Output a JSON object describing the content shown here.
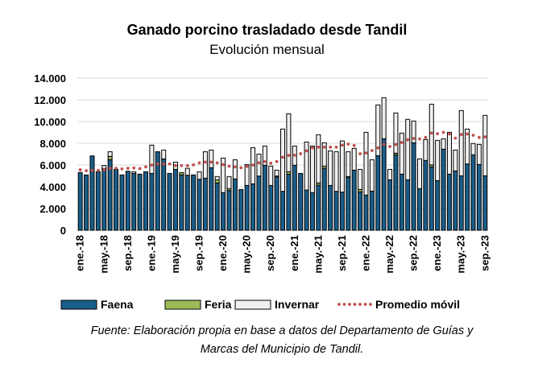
{
  "chart_data": {
    "type": "bar",
    "stacked": true,
    "title": "Ganado porcino trasladado desde Tandil",
    "subtitle": "Evolución mensual",
    "ylim": [
      0,
      14000
    ],
    "yticks": [
      "0",
      "2.000",
      "4.000",
      "6.000",
      "8.000",
      "10.000",
      "12.000",
      "14.000"
    ],
    "ytick_values": [
      0,
      2000,
      4000,
      6000,
      8000,
      10000,
      12000,
      14000
    ],
    "grid": true,
    "legend_placement": "bottom",
    "xtick_labels": [
      "ene.-18",
      "may.-18",
      "sep.-18",
      "ene.-19",
      "may.-19",
      "sep.-19",
      "ene.-20",
      "may.-20",
      "sep.-20",
      "ene.-21",
      "may.-21",
      "sep.-21",
      "ene.-22",
      "may.-22",
      "sep.-22",
      "ene.-23",
      "may.-23",
      "sep.-23"
    ],
    "xtick_every": 4,
    "series": [
      {
        "name": "Faena",
        "color": "#1a5e8a",
        "values": [
          5310,
          5090,
          6840,
          5380,
          5680,
          6490,
          5600,
          5090,
          5430,
          5230,
          5160,
          5380,
          5230,
          7230,
          6570,
          5230,
          5600,
          5090,
          5060,
          5090,
          4690,
          4790,
          5750,
          4350,
          3460,
          3650,
          4720,
          3750,
          4120,
          4270,
          4990,
          5980,
          4120,
          4890,
          3580,
          5160,
          5980,
          5230,
          3700,
          3460,
          4150,
          5700,
          4120,
          3580,
          3510,
          4840,
          5530,
          3530,
          3240,
          3600,
          6860,
          8420,
          4640,
          6940,
          5160,
          4640,
          8050,
          3830,
          6420,
          5830,
          4570,
          7460,
          5160,
          5460,
          5010,
          6100,
          6940,
          6050,
          5010
        ]
      },
      {
        "name": "Feria",
        "color": "#9bbb59",
        "values": [
          0,
          0,
          0,
          0,
          0,
          300,
          0,
          0,
          0,
          0,
          0,
          0,
          0,
          0,
          0,
          0,
          0,
          220,
          0,
          0,
          0,
          0,
          0,
          290,
          0,
          180,
          0,
          0,
          0,
          0,
          0,
          0,
          0,
          100,
          0,
          220,
          0,
          0,
          0,
          0,
          200,
          200,
          0,
          0,
          0,
          100,
          0,
          220,
          0,
          0,
          0,
          0,
          0,
          150,
          0,
          0,
          0,
          0,
          0,
          190,
          0,
          0,
          0,
          0,
          0,
          0,
          0,
          0,
          0
        ]
      },
      {
        "name": "Invernar",
        "color": "#f0f0f0",
        "values": [
          0,
          0,
          0,
          0,
          270,
          440,
          0,
          0,
          0,
          150,
          0,
          0,
          2600,
          0,
          810,
          0,
          670,
          0,
          640,
          0,
          690,
          2440,
          1630,
          300,
          3180,
          1110,
          1770,
          0,
          1930,
          3330,
          2020,
          1770,
          1780,
          540,
          5730,
          5340,
          1770,
          0,
          4420,
          4290,
          4440,
          2150,
          3190,
          3650,
          4710,
          2290,
          2000,
          1850,
          5770,
          2890,
          4670,
          3780,
          960,
          3700,
          3780,
          5560,
          2000,
          2740,
          1930,
          5580,
          3700,
          960,
          3850,
          1920,
          6000,
          3210,
          1040,
          1850,
          5560
        ]
      },
      {
        "name": "Promedio móvil",
        "color": "#c0504d",
        "type": "dotted-line",
        "values": [
          5560,
          5480,
          5510,
          5510,
          5560,
          5700,
          5700,
          5650,
          5700,
          5730,
          5680,
          5830,
          6000,
          6100,
          6100,
          6100,
          5950,
          5950,
          5950,
          6020,
          6200,
          6270,
          6270,
          6200,
          6040,
          5900,
          5830,
          5750,
          5880,
          6000,
          6200,
          6320,
          6170,
          6320,
          6720,
          6890,
          6910,
          7040,
          7310,
          7580,
          7650,
          7650,
          7650,
          7650,
          7830,
          7930,
          7800,
          7040,
          7110,
          7330,
          7580,
          7900,
          7700,
          7900,
          8070,
          8320,
          8440,
          8400,
          8540,
          8940,
          8890,
          9010,
          8860,
          8470,
          8810,
          8860,
          8740,
          8540,
          8590
        ]
      }
    ],
    "first_month": "ene.-18",
    "last_month": "sep.-23"
  },
  "source": {
    "line1": "Fuente: Elaboración propia en base a datos del Departamento de Guías y",
    "line2": "Marcas del Municipio de Tandil."
  }
}
